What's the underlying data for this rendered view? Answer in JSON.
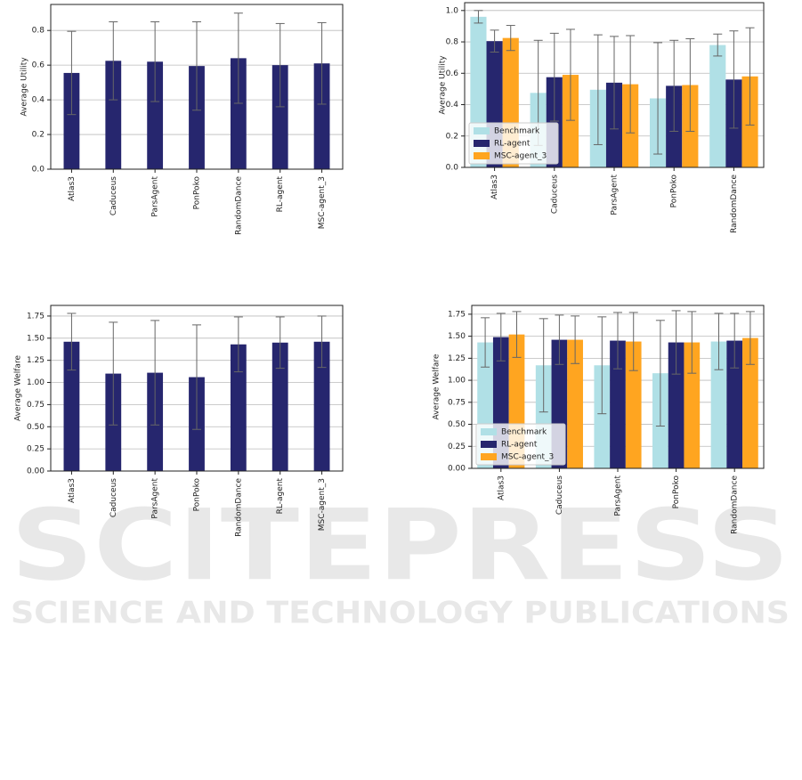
{
  "watermark": {
    "title": "SCITEPRESS",
    "subtitle": "SCIENCE AND TECHNOLOGY PUBLICATIONS"
  },
  "chart_data": [
    {
      "type": "bar",
      "y_label": "Average Utility",
      "categories": [
        "Atlas3",
        "Caduceus",
        "ParsAgent",
        "PonPoko",
        "RandomDance",
        "RL-agent",
        "MSC-agent_3"
      ],
      "values": [
        0.555,
        0.625,
        0.62,
        0.595,
        0.64,
        0.6,
        0.61
      ],
      "errors": [
        0.24,
        0.225,
        0.23,
        0.255,
        0.26,
        0.24,
        0.235
      ],
      "color": "#26266e",
      "ylim": [
        0,
        0.95
      ],
      "yticks": [
        {
          "value": 0,
          "label": "0.0"
        },
        0.2,
        0.4,
        0.6,
        0.8
      ],
      "grid": true
    },
    {
      "type": "bar",
      "y_label": "Average Utility",
      "categories": [
        "Atlas3",
        "Caduceus",
        "ParsAgent",
        "PonPoko",
        "RandomDance"
      ],
      "series": [
        {
          "name": "Benchmark",
          "color": "#b0e0e6",
          "values": [
            0.96,
            0.475,
            0.495,
            0.44,
            0.78
          ],
          "errors": [
            0.04,
            0.335,
            0.35,
            0.355,
            0.07
          ]
        },
        {
          "name": "RL-agent",
          "color": "#26266e",
          "values": [
            0.805,
            0.575,
            0.54,
            0.52,
            0.56
          ],
          "errors": [
            0.07,
            0.28,
            0.295,
            0.29,
            0.31
          ]
        },
        {
          "name": "MSC-agent_3",
          "color": "#ffa520",
          "values": [
            0.825,
            0.59,
            0.53,
            0.525,
            0.58
          ],
          "errors": [
            0.08,
            0.29,
            0.31,
            0.295,
            0.31
          ]
        }
      ],
      "ylim": [
        0,
        1.05
      ],
      "yticks": [
        {
          "value": 0,
          "label": "0.0"
        },
        0.2,
        0.4,
        0.6,
        0.8,
        {
          "value": 1,
          "label": "1.0"
        }
      ],
      "grid": true,
      "legend": "lower left"
    },
    {
      "type": "bar",
      "y_label": "Average Welfare",
      "categories": [
        "Atlas3",
        "Caduceus",
        "ParsAgent",
        "PonPoko",
        "RandomDance",
        "RL-agent",
        "MSC-agent_3"
      ],
      "values": [
        1.46,
        1.1,
        1.11,
        1.06,
        1.43,
        1.45,
        1.46
      ],
      "errors": [
        0.32,
        0.58,
        0.59,
        0.59,
        0.31,
        0.29,
        0.29
      ],
      "color": "#26266e",
      "ylim": [
        0,
        1.87
      ],
      "yticks": [
        {
          "value": 0,
          "label": "0.00"
        },
        0.25,
        {
          "value": 0.5,
          "label": "0.50"
        },
        0.75,
        {
          "value": 1,
          "label": "1.00"
        },
        1.25,
        {
          "value": 1.5,
          "label": "1.50"
        },
        1.75
      ],
      "grid": true
    },
    {
      "type": "bar",
      "y_label": "Average Welfare",
      "categories": [
        "Atlas3",
        "Caduceus",
        "ParsAgent",
        "PonPoko",
        "RandomDance"
      ],
      "series": [
        {
          "name": "Benchmark",
          "color": "#b0e0e6",
          "values": [
            1.43,
            1.17,
            1.17,
            1.08,
            1.44
          ],
          "errors": [
            0.28,
            0.53,
            0.55,
            0.6,
            0.32
          ]
        },
        {
          "name": "RL-agent",
          "color": "#26266e",
          "values": [
            1.49,
            1.46,
            1.45,
            1.43,
            1.45
          ],
          "errors": [
            0.27,
            0.28,
            0.32,
            0.36,
            0.31
          ]
        },
        {
          "name": "MSC-agent_3",
          "color": "#ffa520",
          "values": [
            1.52,
            1.46,
            1.44,
            1.43,
            1.48
          ],
          "errors": [
            0.26,
            0.27,
            0.33,
            0.35,
            0.3
          ]
        }
      ],
      "ylim": [
        0,
        1.85
      ],
      "yticks": [
        {
          "value": 0,
          "label": "0.00"
        },
        0.25,
        {
          "value": 0.5,
          "label": "0.50"
        },
        0.75,
        {
          "value": 1,
          "label": "1.00"
        },
        1.25,
        {
          "value": 1.5,
          "label": "1.50"
        },
        1.75
      ],
      "grid": true,
      "legend": "lower left"
    }
  ]
}
